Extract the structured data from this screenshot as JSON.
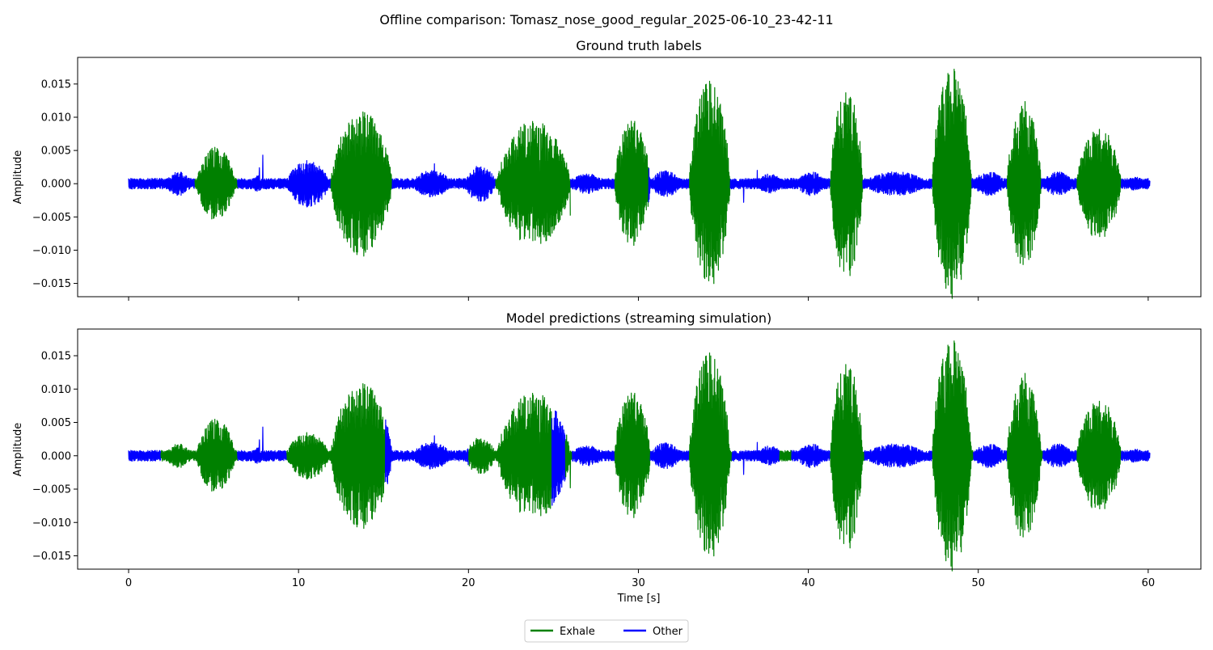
{
  "suptitle": "Offline comparison: Tomasz_nose_good_regular_2025-06-10_23-42-11",
  "legend": {
    "placement": "bottom-center",
    "items": [
      {
        "label": "Exhale",
        "color": "#008000"
      },
      {
        "label": "Other",
        "color": "#0000ff"
      }
    ]
  },
  "chart_data": [
    {
      "type": "line",
      "title": "Ground truth labels",
      "xlabel": "",
      "ylabel": "Amplitude",
      "xlim": [
        -3.0,
        63.1
      ],
      "ylim": [
        -0.017,
        0.019
      ],
      "x_ticks": [
        0,
        10,
        20,
        30,
        40,
        50,
        60
      ],
      "x_tick_labels_shown": false,
      "y_ticks": [
        -0.015,
        -0.01,
        -0.005,
        0.0,
        0.005,
        0.01,
        0.015
      ],
      "y_tick_labels": [
        "−0.015",
        "−0.010",
        "−0.005",
        "0.000",
        "0.005",
        "0.010",
        "0.015"
      ],
      "grid": false,
      "duration_s": 60.1,
      "noise_floor": 0.0008,
      "segments": [
        {
          "label": "Other",
          "start": 0.0,
          "end": 3.9
        },
        {
          "label": "Exhale",
          "start": 3.9,
          "end": 6.4
        },
        {
          "label": "Other",
          "start": 6.4,
          "end": 11.9
        },
        {
          "label": "Exhale",
          "start": 11.9,
          "end": 15.5
        },
        {
          "label": "Other",
          "start": 15.5,
          "end": 21.6
        },
        {
          "label": "Exhale",
          "start": 21.6,
          "end": 26.0
        },
        {
          "label": "Other",
          "start": 26.0,
          "end": 28.6
        },
        {
          "label": "Exhale",
          "start": 28.6,
          "end": 30.6
        },
        {
          "label": "Other",
          "start": 30.6,
          "end": 33.0
        },
        {
          "label": "Exhale",
          "start": 33.0,
          "end": 35.4
        },
        {
          "label": "Other",
          "start": 35.4,
          "end": 41.3
        },
        {
          "label": "Exhale",
          "start": 41.3,
          "end": 43.2
        },
        {
          "label": "Other",
          "start": 43.2,
          "end": 47.3
        },
        {
          "label": "Exhale",
          "start": 47.3,
          "end": 49.6
        },
        {
          "label": "Other",
          "start": 49.6,
          "end": 51.7
        },
        {
          "label": "Exhale",
          "start": 51.7,
          "end": 53.7
        },
        {
          "label": "Other",
          "start": 53.7,
          "end": 55.8
        },
        {
          "label": "Exhale",
          "start": 55.8,
          "end": 58.4
        },
        {
          "label": "Other",
          "start": 58.4,
          "end": 60.1
        }
      ]
    },
    {
      "type": "line",
      "title": "Model predictions (streaming simulation)",
      "xlabel": "Time [s]",
      "ylabel": "Amplitude",
      "xlim": [
        -3.0,
        63.1
      ],
      "ylim": [
        -0.017,
        0.019
      ],
      "x_ticks": [
        0,
        10,
        20,
        30,
        40,
        50,
        60
      ],
      "x_tick_labels": [
        "0",
        "10",
        "20",
        "30",
        "40",
        "50",
        "60"
      ],
      "y_ticks": [
        -0.015,
        -0.01,
        -0.005,
        0.0,
        0.005,
        0.01,
        0.015
      ],
      "y_tick_labels": [
        "−0.015",
        "−0.010",
        "−0.005",
        "0.000",
        "0.005",
        "0.010",
        "0.015"
      ],
      "grid": false,
      "duration_s": 60.1,
      "noise_floor": 0.0008,
      "segments": [
        {
          "label": "Other",
          "start": 0.0,
          "end": 1.9
        },
        {
          "label": "Exhale",
          "start": 1.9,
          "end": 6.4
        },
        {
          "label": "Other",
          "start": 6.4,
          "end": 9.3
        },
        {
          "label": "Exhale",
          "start": 9.3,
          "end": 15.1
        },
        {
          "label": "Other",
          "start": 15.1,
          "end": 20.0
        },
        {
          "label": "Exhale",
          "start": 20.0,
          "end": 24.9
        },
        {
          "label": "Other",
          "start": 24.9,
          "end": 25.7
        },
        {
          "label": "Exhale",
          "start": 25.7,
          "end": 26.1
        },
        {
          "label": "Other",
          "start": 26.1,
          "end": 28.6
        },
        {
          "label": "Exhale",
          "start": 28.6,
          "end": 30.7
        },
        {
          "label": "Other",
          "start": 30.7,
          "end": 33.0
        },
        {
          "label": "Exhale",
          "start": 33.0,
          "end": 35.5
        },
        {
          "label": "Other",
          "start": 35.5,
          "end": 38.3
        },
        {
          "label": "Exhale",
          "start": 38.3,
          "end": 39.0
        },
        {
          "label": "Other",
          "start": 39.0,
          "end": 41.3
        },
        {
          "label": "Exhale",
          "start": 41.3,
          "end": 43.3
        },
        {
          "label": "Other",
          "start": 43.3,
          "end": 47.3
        },
        {
          "label": "Exhale",
          "start": 47.3,
          "end": 49.7
        },
        {
          "label": "Other",
          "start": 49.7,
          "end": 51.7
        },
        {
          "label": "Exhale",
          "start": 51.7,
          "end": 53.8
        },
        {
          "label": "Other",
          "start": 53.8,
          "end": 55.8
        },
        {
          "label": "Exhale",
          "start": 55.8,
          "end": 58.4
        },
        {
          "label": "Other",
          "start": 58.4,
          "end": 60.1
        }
      ]
    }
  ],
  "signal": {
    "bursts": [
      {
        "start": 4.0,
        "end": 6.3,
        "peak": 0.0055
      },
      {
        "start": 11.9,
        "end": 15.5,
        "peak": 0.011
      },
      {
        "start": 21.7,
        "end": 26.0,
        "peak": 0.0095
      },
      {
        "start": 28.6,
        "end": 30.7,
        "peak": 0.0095
      },
      {
        "start": 33.0,
        "end": 35.4,
        "peak": 0.0155
      },
      {
        "start": 41.3,
        "end": 43.2,
        "peak": 0.0145
      },
      {
        "start": 47.3,
        "end": 49.6,
        "peak": 0.0175
      },
      {
        "start": 51.7,
        "end": 53.7,
        "peak": 0.0125
      },
      {
        "start": 55.8,
        "end": 58.4,
        "peak": 0.0085
      }
    ],
    "small_bursts": [
      {
        "start": 2.2,
        "end": 3.7,
        "peak": 0.0018
      },
      {
        "start": 7.2,
        "end": 8.0,
        "peak": 0.0012
      },
      {
        "start": 9.3,
        "end": 11.8,
        "peak": 0.0035
      },
      {
        "start": 16.7,
        "end": 19.0,
        "peak": 0.002
      },
      {
        "start": 19.8,
        "end": 21.6,
        "peak": 0.0028
      },
      {
        "start": 26.0,
        "end": 28.0,
        "peak": 0.0015
      },
      {
        "start": 30.7,
        "end": 32.5,
        "peak": 0.002
      },
      {
        "start": 37.0,
        "end": 38.5,
        "peak": 0.0015
      },
      {
        "start": 39.3,
        "end": 41.0,
        "peak": 0.0018
      },
      {
        "start": 43.3,
        "end": 47.0,
        "peak": 0.0018
      },
      {
        "start": 49.7,
        "end": 51.6,
        "peak": 0.0018
      },
      {
        "start": 53.8,
        "end": 55.6,
        "peak": 0.0018
      },
      {
        "start": 58.4,
        "end": 60.1,
        "peak": 0.001
      }
    ],
    "spikes": [
      {
        "t": 7.9,
        "v": 0.0043
      },
      {
        "t": 7.7,
        "v": 0.0024
      },
      {
        "t": 10.5,
        "v": -0.0035
      },
      {
        "t": 36.2,
        "v": -0.0028
      },
      {
        "t": 37.0,
        "v": 0.002
      },
      {
        "t": 24.2,
        "v": -0.004
      },
      {
        "t": 26.0,
        "v": -0.0048
      },
      {
        "t": 18.0,
        "v": 0.003
      }
    ]
  }
}
